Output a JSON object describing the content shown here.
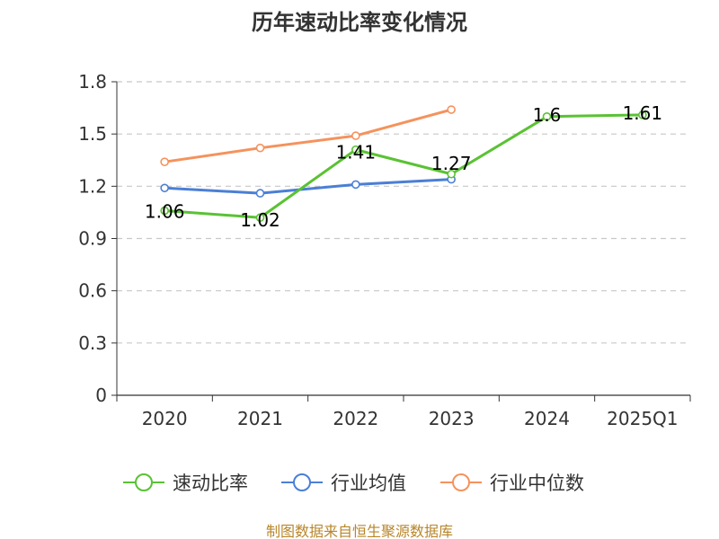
{
  "chart_data": {
    "type": "line",
    "title": "历年速动比率变化情况",
    "categories": [
      "2020",
      "2021",
      "2022",
      "2023",
      "2024",
      "2025Q1"
    ],
    "ylim": [
      0,
      1.8
    ],
    "yticks": [
      0,
      0.3,
      0.6,
      0.9,
      1.2,
      1.5,
      1.8
    ],
    "ytick_labels": [
      "0",
      "0.3",
      "0.6",
      "0.9",
      "1.2",
      "1.5",
      "1.8"
    ],
    "grid": true,
    "legend_position": "bottom",
    "series": [
      {
        "name": "速动比率",
        "color": "#5ac234",
        "values": [
          1.06,
          1.02,
          1.41,
          1.27,
          1.6,
          1.61
        ],
        "labels": [
          "1.06",
          "1.02",
          "1.41",
          "1.27",
          "1.6",
          "1.61"
        ]
      },
      {
        "name": "行业均值",
        "color": "#4b7fd6",
        "values": [
          1.19,
          1.16,
          1.21,
          1.24,
          null,
          null
        ]
      },
      {
        "name": "行业中位数",
        "color": "#f5925c",
        "values": [
          1.34,
          1.42,
          1.49,
          1.64,
          null,
          null
        ]
      }
    ],
    "source": "制图数据来自恒生聚源数据库"
  }
}
